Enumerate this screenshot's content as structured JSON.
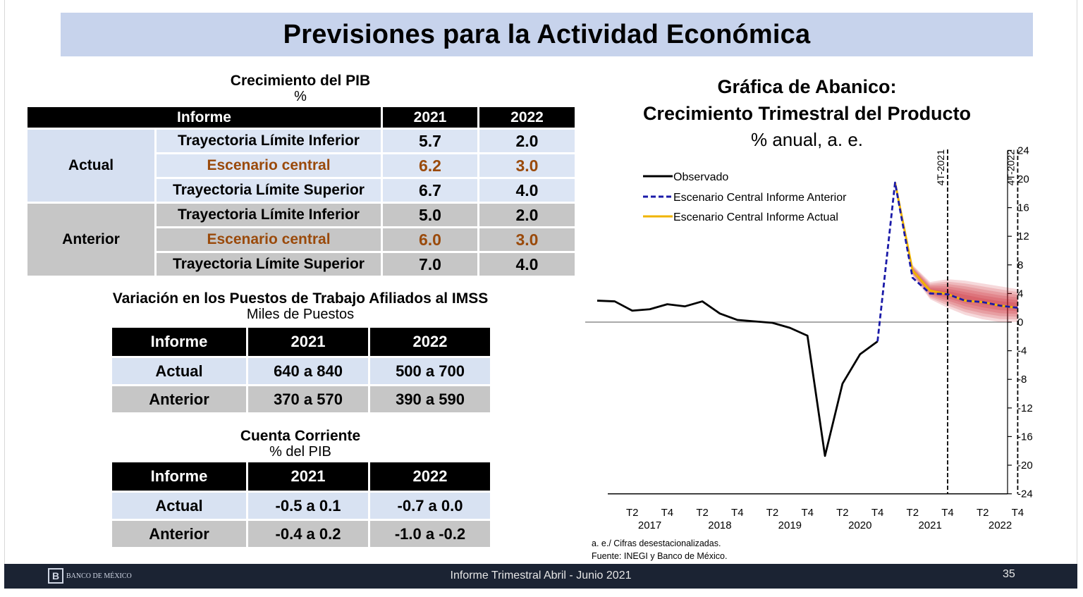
{
  "header": {
    "title": "Previsiones para la Actividad Económica"
  },
  "pib": {
    "title": "Crecimiento del PIB",
    "unit": "%",
    "columns": [
      "Informe",
      "2021",
      "2022"
    ],
    "groups": [
      {
        "name": "Actual",
        "rows": [
          {
            "label": "Trayectoria Límite Inferior",
            "v2021": "5.7",
            "v2022": "2.0"
          },
          {
            "label": "Escenario central",
            "v2021": "6.2",
            "v2022": "3.0"
          },
          {
            "label": "Trayectoria Límite Superior",
            "v2021": "6.7",
            "v2022": "4.0"
          }
        ]
      },
      {
        "name": "Anterior",
        "rows": [
          {
            "label": "Trayectoria Límite Inferior",
            "v2021": "5.0",
            "v2022": "2.0"
          },
          {
            "label": "Escenario central",
            "v2021": "6.0",
            "v2022": "3.0"
          },
          {
            "label": "Trayectoria Límite Superior",
            "v2021": "7.0",
            "v2022": "4.0"
          }
        ]
      }
    ],
    "highlight_color": "#9a4a0b"
  },
  "imss": {
    "title": "Variación en los Puestos de Trabajo Afiliados al IMSS",
    "unit": "Miles de Puestos",
    "columns": [
      "Informe",
      "2021",
      "2022"
    ],
    "rows": [
      {
        "label": "Actual",
        "v2021": "640 a 840",
        "v2022": "500 a 700"
      },
      {
        "label": "Anterior",
        "v2021": "370 a 570",
        "v2022": "390 a 590"
      }
    ]
  },
  "cc": {
    "title": "Cuenta Corriente",
    "unit": "% del PIB",
    "columns": [
      "Informe",
      "2021",
      "2022"
    ],
    "rows": [
      {
        "label": "Actual",
        "v2021": "-0.5 a 0.1",
        "v2022": "-0.7 a 0.0"
      },
      {
        "label": "Anterior",
        "v2021": "-0.4 a 0.2",
        "v2022": "-1.0 a -0.2"
      }
    ]
  },
  "chart_data": {
    "type": "line",
    "title": "Gráfica de Abanico:",
    "subtitle": "Crecimiento Trimestral del Producto",
    "ylabel": "% anual, a. e.",
    "ylim": [
      -24,
      24
    ],
    "yticks": [
      24,
      20,
      16,
      12,
      8,
      4,
      0,
      -4,
      -8,
      -12,
      -16,
      -20,
      -24
    ],
    "x_tick_labels": [
      "T2",
      "T4",
      "T2",
      "T4",
      "T2",
      "T4",
      "T2",
      "T4",
      "T2",
      "T4",
      "T2",
      "T4"
    ],
    "x_year_labels": [
      "2017",
      "2018",
      "2019",
      "2020",
      "2021",
      "2022"
    ],
    "x": [
      "2016T4",
      "2017T1",
      "2017T2",
      "2017T3",
      "2017T4",
      "2018T1",
      "2018T2",
      "2018T3",
      "2018T4",
      "2019T1",
      "2019T2",
      "2019T3",
      "2019T4",
      "2020T1",
      "2020T2",
      "2020T3",
      "2020T4",
      "2021T1",
      "2021T2",
      "2021T3",
      "2021T4",
      "2022T1",
      "2022T2",
      "2022T3",
      "2022T4"
    ],
    "vlines": [
      "4T-2021",
      "4T-2022"
    ],
    "legend_position": "top-left",
    "series": [
      {
        "name": "Observado",
        "color": "#000000",
        "style": "solid",
        "values": [
          3.0,
          2.9,
          1.6,
          1.8,
          2.5,
          2.2,
          2.9,
          1.2,
          0.3,
          0.1,
          -0.1,
          -0.8,
          -1.9,
          -18.7,
          -8.6,
          -4.5,
          -2.7,
          null,
          null,
          null,
          null,
          null,
          null,
          null,
          null
        ]
      },
      {
        "name": "Escenario Central Informe Anterior",
        "color": "#1a1aa8",
        "style": "dashed",
        "values": [
          null,
          null,
          null,
          null,
          null,
          null,
          null,
          null,
          null,
          null,
          null,
          null,
          null,
          null,
          null,
          null,
          -2.7,
          19.5,
          6.2,
          4.0,
          3.9,
          3.0,
          2.8,
          2.3,
          2.0
        ]
      },
      {
        "name": "Escenario Central Informe Actual",
        "color": "#f0b400",
        "style": "solid",
        "values": [
          null,
          null,
          null,
          null,
          null,
          null,
          null,
          null,
          null,
          null,
          null,
          null,
          null,
          null,
          null,
          null,
          null,
          19.5,
          7.2,
          4.4,
          3.9,
          3.0,
          2.8,
          2.3,
          2.0
        ]
      }
    ],
    "fan": {
      "color": "#c8141e",
      "x": [
        "2021T2",
        "2021T3",
        "2021T4",
        "2022T1",
        "2022T2",
        "2022T3",
        "2022T4"
      ],
      "lower": [
        6.5,
        3.2,
        2.0,
        1.0,
        0.4,
        0.0,
        0.0
      ],
      "upper": [
        8.0,
        5.6,
        6.0,
        5.8,
        5.4,
        5.0,
        4.6
      ]
    },
    "notes": [
      "a. e./ Cifras desestacionalizadas.",
      "Fuente: INEGI y Banco de México."
    ]
  },
  "footer": {
    "bank": "BANCO DE MÉXICO",
    "text": "Informe Trimestral Abril - Junio 2021",
    "page": "35"
  }
}
